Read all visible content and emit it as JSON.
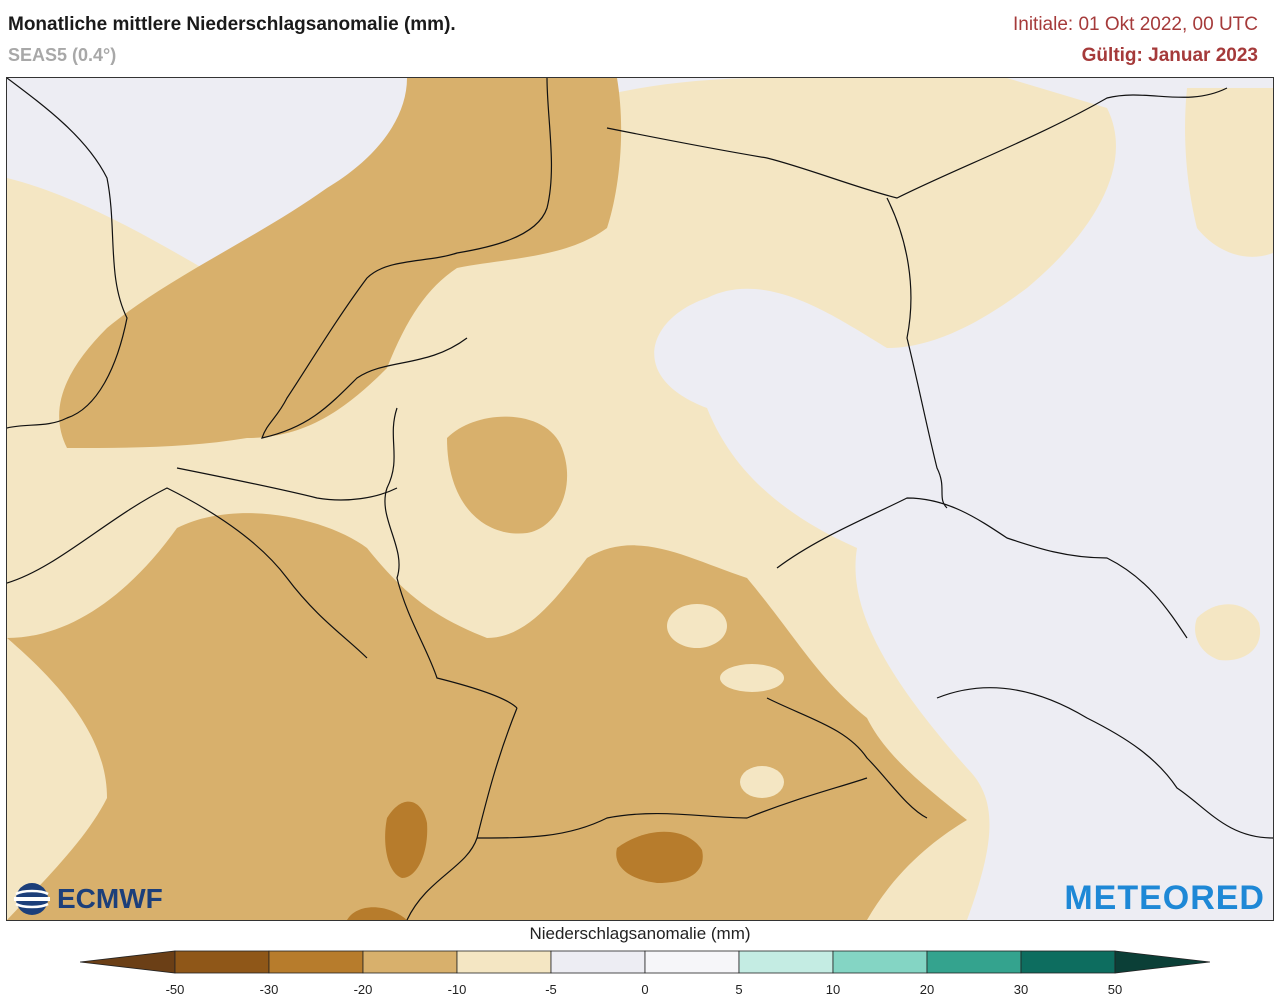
{
  "header": {
    "title": "Monatliche mittlere Niederschlagsanomalie (mm).",
    "subtitle": "SEAS5 (0.4°)",
    "init_label": "Initiale: 01 Okt 2022, 00 UTC",
    "valid_label": "Gültig: Januar 2023"
  },
  "logos": {
    "left": "ECMWF",
    "right": "METEORED"
  },
  "legend": {
    "title": "Niederschlagsanomalie (mm)",
    "ticks": [
      "-50",
      "-30",
      "-20",
      "-10",
      "-5",
      "0",
      "5",
      "10",
      "20",
      "30",
      "50"
    ],
    "colors": {
      "below_-50": "#6b3f16",
      "-50_-30": "#8f5718",
      "-30_-20": "#b77c2c",
      "-20_-10": "#d8b06c",
      "-10_-5": "#f4e6c3",
      "-5_0": "#ededf3",
      "0_5": "#f6f6f9",
      "5_10": "#c4ece3",
      "10_20": "#84d5c4",
      "20_30": "#34a38e",
      "30_50": "#0d6d5f",
      "above_50": "#0b3f37"
    }
  }
}
